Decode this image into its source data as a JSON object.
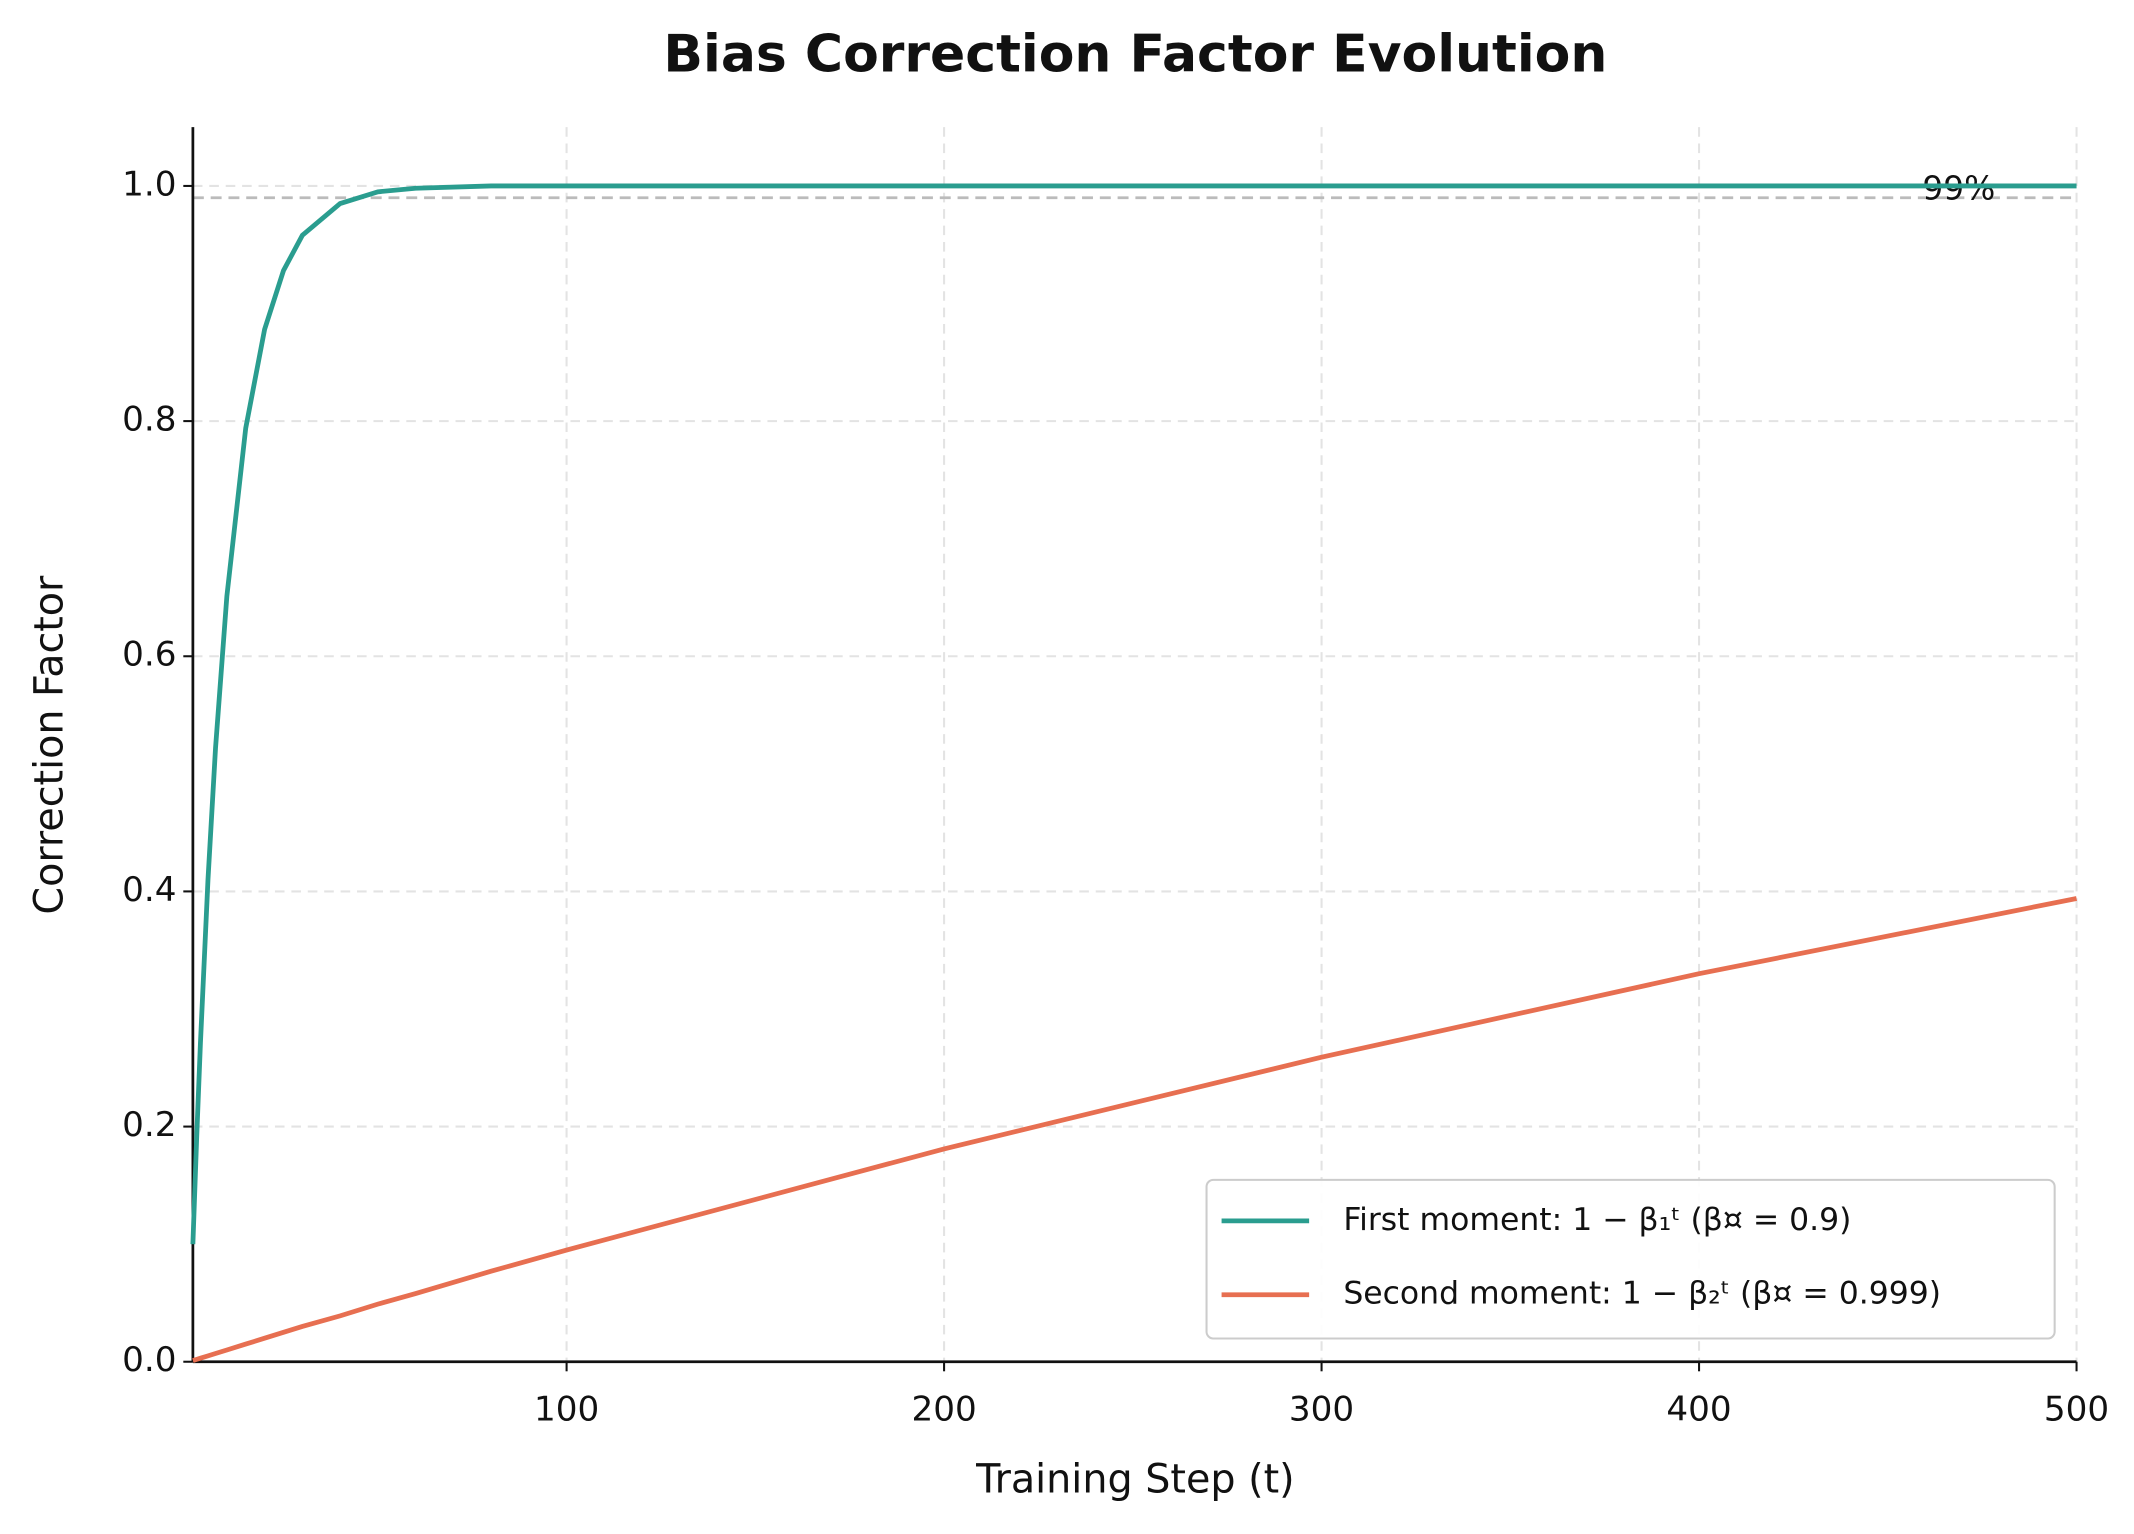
{
  "chart_data": {
    "type": "line",
    "title": "Bias Correction Factor Evolution",
    "x_label": "Training Step (t)",
    "y_label": "Correction Factor",
    "x": [
      1,
      2,
      3,
      5,
      7,
      10,
      15,
      20,
      25,
      30,
      40,
      50,
      60,
      80,
      100,
      200,
      300,
      400,
      500
    ],
    "series": [
      {
        "name": "First moment: 1 − β₁ᵗ (β¤ = 0.9)",
        "color": "#2a9d8f",
        "values": [
          0.1,
          0.19,
          0.271,
          0.41,
          0.522,
          0.651,
          0.794,
          0.878,
          0.928,
          0.958,
          0.985,
          0.995,
          0.998,
          1.0,
          1.0,
          1.0,
          1.0,
          1.0,
          1.0
        ]
      },
      {
        "name": "Second moment: 1 − β₂ᵗ (β¤ = 0.999)",
        "color": "#e76f51",
        "values": [
          0.001,
          0.002,
          0.003,
          0.005,
          0.007,
          0.01,
          0.015,
          0.02,
          0.025,
          0.03,
          0.039,
          0.049,
          0.058,
          0.077,
          0.095,
          0.181,
          0.259,
          0.33,
          0.394
        ]
      }
    ],
    "reference_line": {
      "value": 0.99,
      "label": "99%",
      "color": "#bbbbbb"
    },
    "xlim": [
      1,
      500
    ],
    "xticks": [
      100,
      200,
      300,
      400,
      500
    ],
    "ylim": [
      0,
      1.05
    ],
    "yticks": [
      {
        "value": 0,
        "label": "0.0"
      },
      0.2,
      0.4,
      0.6,
      0.8,
      {
        "value": 1,
        "label": "1.0"
      }
    ],
    "grid": true,
    "legend": "lower right"
  }
}
